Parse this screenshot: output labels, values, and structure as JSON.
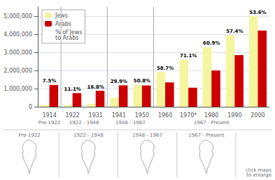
{
  "chart_data": {
    "type": "bar",
    "categories": [
      "1914",
      "1922",
      "1931",
      "1941",
      "1950",
      "1960",
      "1970*",
      "1980",
      "1990",
      "2000"
    ],
    "series": [
      {
        "name": "Jews",
        "color": "#f5f5a0",
        "values": [
          94000,
          84000,
          175000,
          500000,
          1200000,
          1911000,
          2582000,
          3282000,
          3947000,
          5000000
        ]
      },
      {
        "name": "Arabs",
        "color": "#cc0000",
        "values": [
          1200000,
          752000,
          880000,
          1181000,
          1172000,
          1340000,
          1050000,
          2000000,
          2850000,
          4200000
        ]
      }
    ],
    "ylim": [
      0,
      5500000
    ],
    "yticks": [
      0,
      {
        "value": 1000000,
        "label": "1,000,000"
      },
      {
        "value": 2000000,
        "label": "2,000,000"
      },
      {
        "value": 3000000,
        "label": "3,000,000"
      },
      {
        "value": 4000000,
        "label": "4,000,000"
      },
      {
        "value": 5000000,
        "label": "5,000,000"
      }
    ],
    "grid": true,
    "legend": "upper left",
    "legend_note": "% of Jews\nto Arabs",
    "annotations": [
      {
        "category": "1914",
        "text": "7.5%"
      },
      {
        "category": "1922",
        "text": "11.1%"
      },
      {
        "category": "1931",
        "text": "16.8%"
      },
      {
        "category": "1941",
        "text": "29.9%"
      },
      {
        "category": "1950",
        "text": "50.8%"
      },
      {
        "category": "1960",
        "text": "58.7%"
      },
      {
        "category": "1970*",
        "text": "71.1%"
      },
      {
        "category": "1980",
        "text": "60.9%"
      },
      {
        "category": "1990",
        "text": "57.4%"
      },
      {
        "category": "2000",
        "text": "53.6%"
      }
    ],
    "period_labels": [
      {
        "text": "Pre-1922",
        "categories": [
          "1914"
        ]
      },
      {
        "text": "1922 - 1948",
        "categories": [
          "1922",
          "1931"
        ]
      },
      {
        "text": "1948 - 1967",
        "categories": [
          "1941",
          "1950"
        ]
      },
      {
        "text": "1967 - Present",
        "categories": [
          "1960",
          "1970*",
          "1980",
          "1990",
          "2000"
        ]
      }
    ],
    "map_labels": [
      "Pre-1922",
      "1922 - 1948",
      "1948 - 1967",
      "1967 - Present"
    ],
    "note": "click maps\nto enlarge"
  }
}
